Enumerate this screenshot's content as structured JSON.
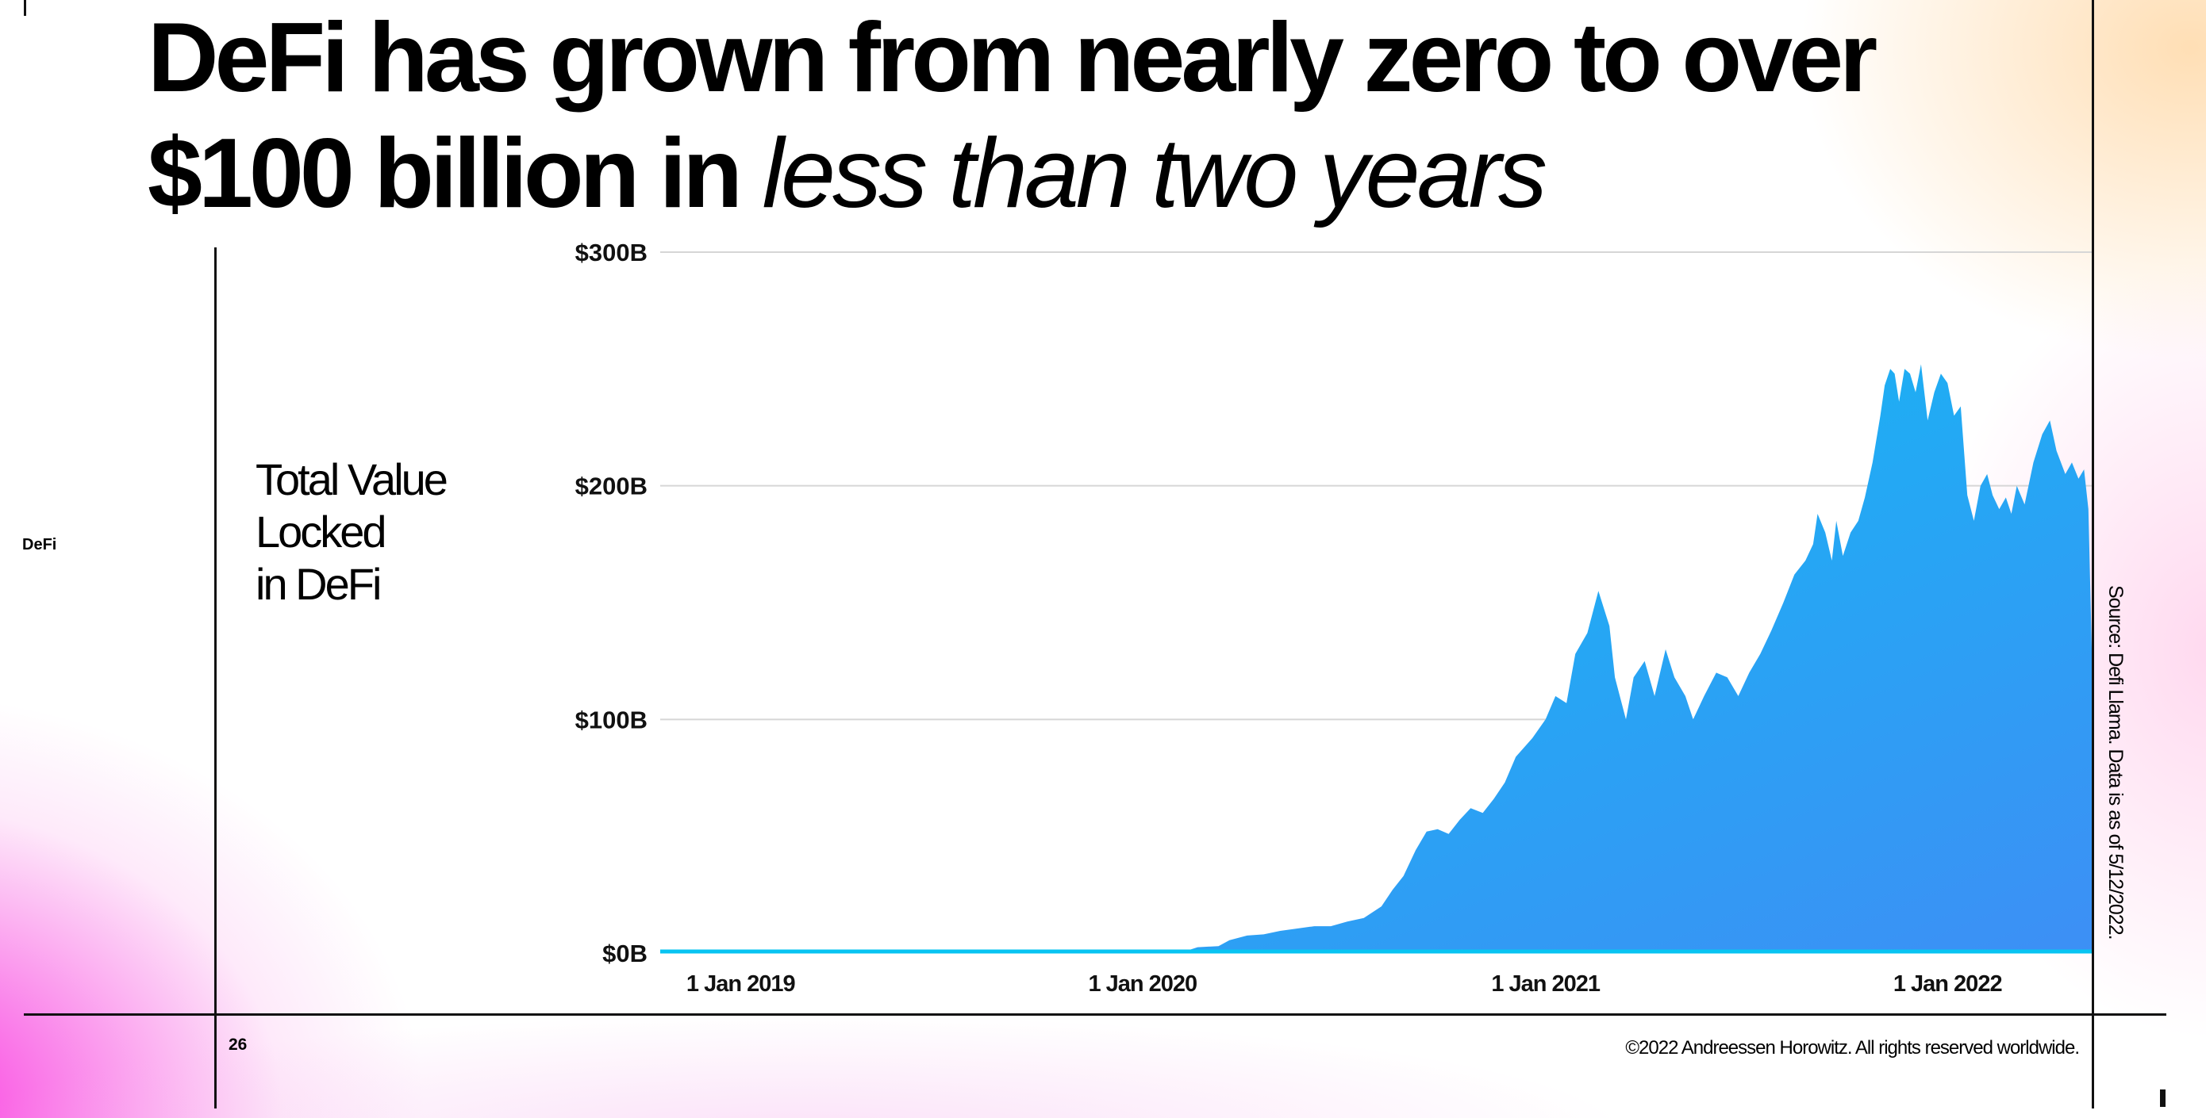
{
  "slide": {
    "title_bold": "DeFi has grown from nearly zero to over $100 billion in",
    "title_bold_line1": "DeFi has grown from nearly zero to over",
    "title_bold_line2": "$100 billion in",
    "title_italic": "less than two years",
    "side_label": "DeFi",
    "page_number": "26",
    "copyright": "©2022 Andreessen Horowitz. All rights reserved worldwide.",
    "source": "Source: Defi Llama. Data is as of 5/12/2022.",
    "chart_label_lines": [
      "Total Value",
      "Locked",
      "in DeFi"
    ]
  },
  "colors": {
    "area_top": "#08c4f2",
    "area_bottom": "#3d8ff5",
    "axis_text": "#111111",
    "gridline": "#d6d6d6",
    "accent_pink": "#f828dc",
    "accent_orange": "#ffc478"
  },
  "chart_data": {
    "type": "area",
    "title": "",
    "ylabel": "Total Value Locked in DeFi",
    "ylim": [
      0,
      300
    ],
    "y_ticks": [
      {
        "value": 0,
        "label": "$0B"
      },
      {
        "value": 100,
        "label": "$100B"
      },
      {
        "value": 200,
        "label": "$200B"
      },
      {
        "value": 300,
        "label": "$300B"
      }
    ],
    "xlim": [
      "2018-10-20",
      "2022-05-12"
    ],
    "x_ticks": [
      {
        "value": "2019-01-01",
        "label": "1 Jan 2019"
      },
      {
        "value": "2020-01-01",
        "label": "1 Jan 2020"
      },
      {
        "value": "2021-01-01",
        "label": "1 Jan 2021"
      },
      {
        "value": "2022-01-01",
        "label": "1 Jan 2022"
      }
    ],
    "grid": true,
    "series": [
      {
        "name": "",
        "points": [
          [
            "2018-10-20",
            0.3
          ],
          [
            "2019-01-01",
            0.3
          ],
          [
            "2019-04-01",
            0.5
          ],
          [
            "2019-07-01",
            0.8
          ],
          [
            "2019-10-01",
            0.7
          ],
          [
            "2020-01-01",
            0.7
          ],
          [
            "2020-01-20",
            1.0
          ],
          [
            "2020-02-10",
            1.0
          ],
          [
            "2020-02-20",
            2.5
          ],
          [
            "2020-03-10",
            3.0
          ],
          [
            "2020-03-20",
            5.5
          ],
          [
            "2020-04-05",
            7.5
          ],
          [
            "2020-04-20",
            8.0
          ],
          [
            "2020-05-05",
            9.5
          ],
          [
            "2020-05-20",
            10.5
          ],
          [
            "2020-06-05",
            11.5
          ],
          [
            "2020-06-20",
            11.5
          ],
          [
            "2020-07-05",
            13.5
          ],
          [
            "2020-07-20",
            15.0
          ],
          [
            "2020-08-05",
            20.0
          ],
          [
            "2020-08-15",
            27.0
          ],
          [
            "2020-08-25",
            33.0
          ],
          [
            "2020-09-05",
            44.0
          ],
          [
            "2020-09-15",
            52.0
          ],
          [
            "2020-09-25",
            53.0
          ],
          [
            "2020-10-05",
            51.0
          ],
          [
            "2020-10-15",
            57.0
          ],
          [
            "2020-10-25",
            62.0
          ],
          [
            "2020-11-05",
            60.0
          ],
          [
            "2020-11-15",
            66.0
          ],
          [
            "2020-11-25",
            73.0
          ],
          [
            "2020-12-05",
            84.0
          ],
          [
            "2020-12-20",
            92.0
          ],
          [
            "2021-01-01",
            100.0
          ],
          [
            "2021-01-10",
            110.0
          ],
          [
            "2021-01-20",
            107.0
          ],
          [
            "2021-01-28",
            128.0
          ],
          [
            "2021-02-08",
            137.0
          ],
          [
            "2021-02-18",
            155.0
          ],
          [
            "2021-02-28",
            140.0
          ],
          [
            "2021-03-05",
            118.0
          ],
          [
            "2021-03-15",
            100.0
          ],
          [
            "2021-03-22",
            118.0
          ],
          [
            "2021-04-01",
            125.0
          ],
          [
            "2021-04-10",
            110.0
          ],
          [
            "2021-04-20",
            130.0
          ],
          [
            "2021-04-28",
            118.0
          ],
          [
            "2021-05-08",
            110.0
          ],
          [
            "2021-05-15",
            100.0
          ],
          [
            "2021-05-25",
            110.0
          ],
          [
            "2021-06-05",
            120.0
          ],
          [
            "2021-06-15",
            118.0
          ],
          [
            "2021-06-25",
            110.0
          ],
          [
            "2021-07-05",
            120.0
          ],
          [
            "2021-07-15",
            128.0
          ],
          [
            "2021-07-25",
            138.0
          ],
          [
            "2021-08-05",
            150.0
          ],
          [
            "2021-08-15",
            162.0
          ],
          [
            "2021-08-25",
            168.0
          ],
          [
            "2021-09-01",
            175.0
          ],
          [
            "2021-09-05",
            188.0
          ],
          [
            "2021-09-12",
            180.0
          ],
          [
            "2021-09-18",
            168.0
          ],
          [
            "2021-09-22",
            185.0
          ],
          [
            "2021-09-28",
            170.0
          ],
          [
            "2021-10-05",
            180.0
          ],
          [
            "2021-10-12",
            185.0
          ],
          [
            "2021-10-18",
            195.0
          ],
          [
            "2021-10-25",
            210.0
          ],
          [
            "2021-11-01",
            230.0
          ],
          [
            "2021-11-05",
            243.0
          ],
          [
            "2021-11-10",
            250.0
          ],
          [
            "2021-11-14",
            248.0
          ],
          [
            "2021-11-18",
            236.0
          ],
          [
            "2021-11-23",
            250.0
          ],
          [
            "2021-11-28",
            248.0
          ],
          [
            "2021-12-03",
            240.0
          ],
          [
            "2021-12-08",
            252.0
          ],
          [
            "2021-12-14",
            228.0
          ],
          [
            "2021-12-20",
            240.0
          ],
          [
            "2021-12-26",
            248.0
          ],
          [
            "2022-01-01",
            244.0
          ],
          [
            "2022-01-07",
            230.0
          ],
          [
            "2022-01-13",
            234.0
          ],
          [
            "2022-01-19",
            196.0
          ],
          [
            "2022-01-25",
            185.0
          ],
          [
            "2022-01-31",
            200.0
          ],
          [
            "2022-02-06",
            205.0
          ],
          [
            "2022-02-11",
            196.0
          ],
          [
            "2022-02-17",
            190.0
          ],
          [
            "2022-02-23",
            195.0
          ],
          [
            "2022-02-28",
            188.0
          ],
          [
            "2022-03-05",
            200.0
          ],
          [
            "2022-03-12",
            192.0
          ],
          [
            "2022-03-20",
            210.0
          ],
          [
            "2022-03-28",
            222.0
          ],
          [
            "2022-04-04",
            228.0
          ],
          [
            "2022-04-10",
            215.0
          ],
          [
            "2022-04-18",
            205.0
          ],
          [
            "2022-04-24",
            210.0
          ],
          [
            "2022-04-30",
            203.0
          ],
          [
            "2022-05-05",
            207.0
          ],
          [
            "2022-05-09",
            190.0
          ],
          [
            "2022-05-12",
            130.0
          ]
        ]
      }
    ]
  }
}
